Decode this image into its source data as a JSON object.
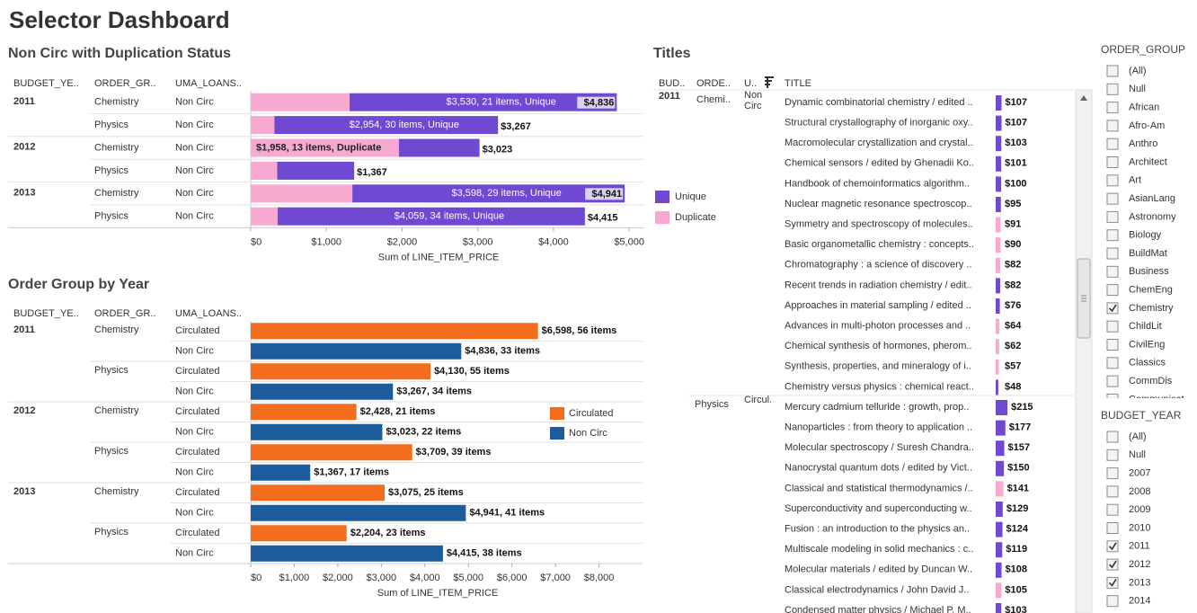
{
  "title": "Selector Dashboard",
  "chart_data": [
    {
      "type": "stacked-bar",
      "title": "Non Circ with Duplication Status",
      "column_headers": [
        "BUDGET_YE..",
        "ORDER_GR..",
        "UMA_LOANS.."
      ],
      "years": [
        "2011",
        "2012",
        "2013"
      ],
      "order_groups": [
        "Chemistry",
        "Physics",
        "Chemistry",
        "Physics",
        "Chemistry",
        "Physics"
      ],
      "loan_status": [
        "Non Circ",
        "Non Circ",
        "Non Circ",
        "Non Circ",
        "Non Circ",
        "Non Circ"
      ],
      "series": [
        {
          "name": "Duplicate",
          "color": "#f7a9cf",
          "values": [
            1306,
            313,
            1958,
            350,
            1343,
            356
          ],
          "value_labels": [
            null,
            null,
            "$1,958, 13 items, Duplicate",
            null,
            null,
            null
          ]
        },
        {
          "name": "Unique",
          "color": "#7049d3",
          "values": [
            3530,
            2954,
            1065,
            1017,
            3598,
            4059
          ],
          "value_labels": [
            "$3,530, 21 items, Unique",
            "$2,954, 30 items, Unique",
            null,
            null,
            "$3,598, 29 items, Unique",
            "$4,059, 34 items, Unique"
          ]
        }
      ],
      "total_labels": [
        "$4,836",
        "$3,267",
        "$3,023",
        "$1,367",
        "$4,941",
        "$4,415"
      ],
      "xlim": [
        0,
        5200
      ],
      "xticks": [
        {
          "value": 0,
          "label": "$0"
        },
        {
          "value": 1000,
          "label": "$1,000"
        },
        {
          "value": 2000,
          "label": "$2,000"
        },
        {
          "value": 3000,
          "label": "$3,000"
        },
        {
          "value": 4000,
          "label": "$4,000"
        },
        {
          "value": 5000,
          "label": "$5,000"
        }
      ],
      "x_label": "Sum of LINE_ITEM_PRICE"
    },
    {
      "type": "bar",
      "title": "Order Group by Year",
      "column_headers": [
        "BUDGET_YE..",
        "ORDER_GR..",
        "UMA_LOANS.."
      ],
      "years": [
        "2011",
        "2012",
        "2013"
      ],
      "order_groups": [
        "Chemistry",
        "Physics",
        "Chemistry",
        "Physics",
        "Chemistry",
        "Physics"
      ],
      "loan_status": [
        "Circulated",
        "Non Circ",
        "Circulated",
        "Non Circ",
        "Circulated",
        "Non Circ",
        "Circulated",
        "Non Circ",
        "Circulated",
        "Non Circ",
        "Circulated",
        "Non Circ"
      ],
      "values": [
        6598,
        4836,
        4130,
        3267,
        2428,
        3023,
        3709,
        1367,
        3075,
        4941,
        2204,
        4415
      ],
      "value_labels": [
        "$6,598, 56 items",
        "$4,836, 33 items",
        "$4,130, 55 items",
        "$3,267, 34 items",
        "$2,428, 21 items",
        "$3,023, 22 items",
        "$3,709, 39 items",
        "$1,367, 17 items",
        "$3,075, 25 items",
        "$4,941, 41 items",
        "$2,204, 23 items",
        "$4,415, 38 items"
      ],
      "legend": [
        {
          "name": "Circulated",
          "color": "#f26d1d"
        },
        {
          "name": "Non Circ",
          "color": "#1d5c9c"
        }
      ],
      "xlim": [
        0,
        9000
      ],
      "xticks": [
        {
          "value": 0,
          "label": "$0"
        },
        {
          "value": 1000,
          "label": "$1,000"
        },
        {
          "value": 2000,
          "label": "$2,000"
        },
        {
          "value": 3000,
          "label": "$3,000"
        },
        {
          "value": 4000,
          "label": "$4,000"
        },
        {
          "value": 5000,
          "label": "$5,000"
        },
        {
          "value": 6000,
          "label": "$6,000"
        },
        {
          "value": 7000,
          "label": "$7,000"
        },
        {
          "value": 8000,
          "label": "$8,000"
        }
      ],
      "x_label": "Sum of LINE_ITEM_PRICE"
    },
    {
      "type": "title-bars",
      "title": "Titles",
      "column_headers": [
        "BUD..",
        "ORDE..",
        "U..",
        "TITLE"
      ],
      "xlim": [
        0,
        230
      ],
      "groups": [
        {
          "year": "2011",
          "order_group": "Chemi..",
          "loan_status": "Non Circ",
          "titles": [
            "Dynamic combinatorial chemistry / edited ..",
            "Structural crystallography of inorganic oxy..",
            "Macromolecular crystallization and crystal..",
            "Chemical sensors / edited by Ghenadii Ko..",
            "Handbook of chemoinformatics algorithm..",
            "Nuclear magnetic resonance spectroscop..",
            "Symmetry and spectroscopy of molecules..",
            "Basic organometallic chemistry : concepts..",
            "Chromatography : a science of discovery ..",
            "Recent trends in radiation chemistry / edit..",
            "Approaches in material sampling / edited ..",
            "Advances in multi-photon processes and ..",
            "Chemical synthesis of hormones, pherom..",
            "Synthesis, properties, and mineralogy of i..",
            "Chemistry versus physics : chemical react.."
          ],
          "values": [
            107,
            107,
            103,
            101,
            100,
            95,
            91,
            90,
            82,
            82,
            76,
            64,
            62,
            57,
            48
          ],
          "value_labels": [
            "$107",
            "$107",
            "$103",
            "$101",
            "$100",
            "$95",
            "$91",
            "$90",
            "$82",
            "$82",
            "$76",
            "$64",
            "$62",
            "$57",
            "$48"
          ],
          "colors": [
            "#7049d3",
            "#7049d3",
            "#7049d3",
            "#7049d3",
            "#7049d3",
            "#7049d3",
            "#f7a9cf",
            "#f7a9cf",
            "#f7a9cf",
            "#7049d3",
            "#7049d3",
            "#f7a9cf",
            "#f7a9cf",
            "#f7a9cf",
            "#7049d3"
          ]
        },
        {
          "order_group": "Physics",
          "loan_status": "Circul..",
          "titles": [
            "Mercury cadmium telluride : growth, prop..",
            "Nanoparticles : from theory to application ..",
            "Molecular spectroscopy / Suresh Chandra..",
            "Nanocrystal quantum dots / edited by Vict..",
            "Classical and statistical thermodynamics /..",
            "Superconductivity and superconducting w..",
            "Fusion : an introduction to the physics an..",
            "Multiscale modeling in solid mechanics : c..",
            "Molecular materials / edited by Duncan W..",
            "Classical electrodynamics / John David J..",
            "Condensed matter physics / Michael P. M.."
          ],
          "values": [
            215,
            177,
            157,
            150,
            141,
            129,
            124,
            119,
            108,
            105,
            103
          ],
          "value_labels": [
            "$215",
            "$177",
            "$157",
            "$150",
            "$141",
            "$129",
            "$124",
            "$119",
            "$108",
            "$105",
            "$103"
          ],
          "colors": [
            "#7049d3",
            "#7049d3",
            "#7049d3",
            "#7049d3",
            "#f7a9cf",
            "#7049d3",
            "#7049d3",
            "#7049d3",
            "#7049d3",
            "#f7a9cf",
            "#7049d3"
          ]
        }
      ]
    }
  ],
  "filters": [
    {
      "title": "ORDER_GROUP",
      "items": [
        {
          "label": "(All)",
          "checked": false
        },
        {
          "label": "Null",
          "checked": false
        },
        {
          "label": "African",
          "checked": false
        },
        {
          "label": "Afro-Am",
          "checked": false
        },
        {
          "label": "Anthro",
          "checked": false
        },
        {
          "label": "Architect",
          "checked": false
        },
        {
          "label": "Art",
          "checked": false
        },
        {
          "label": "AsianLang",
          "checked": false
        },
        {
          "label": "Astronomy",
          "checked": false
        },
        {
          "label": "Biology",
          "checked": false
        },
        {
          "label": "BuildMat",
          "checked": false
        },
        {
          "label": "Business",
          "checked": false
        },
        {
          "label": "ChemEng",
          "checked": false
        },
        {
          "label": "Chemistry",
          "checked": true
        },
        {
          "label": "ChildLit",
          "checked": false
        },
        {
          "label": "CivilEng",
          "checked": false
        },
        {
          "label": "Classics",
          "checked": false
        },
        {
          "label": "CommDis",
          "checked": false
        },
        {
          "label": "Communicat..",
          "checked": false
        }
      ]
    },
    {
      "title": "BUDGET_YEAR",
      "items": [
        {
          "label": "(All)",
          "checked": false
        },
        {
          "label": "Null",
          "checked": false
        },
        {
          "label": "2007",
          "checked": false
        },
        {
          "label": "2008",
          "checked": false
        },
        {
          "label": "2009",
          "checked": false
        },
        {
          "label": "2010",
          "checked": false
        },
        {
          "label": "2011",
          "checked": true
        },
        {
          "label": "2012",
          "checked": true
        },
        {
          "label": "2013",
          "checked": true
        },
        {
          "label": "2014",
          "checked": false
        }
      ]
    }
  ]
}
